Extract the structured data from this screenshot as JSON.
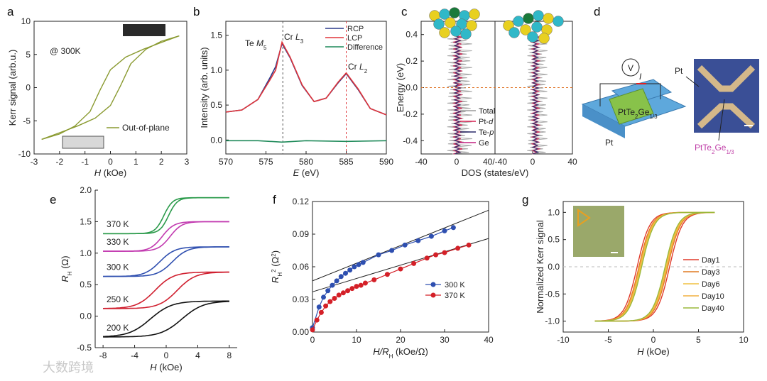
{
  "chart_data": [
    {
      "id": "a",
      "type": "line",
      "panel_label": "a",
      "xlabel": "H (kOe)",
      "ylabel": "Kerr signal (arb.u.)",
      "xlim": [
        -3,
        3
      ],
      "ylim": [
        -10,
        10
      ],
      "xticks": [
        "-3",
        "-2",
        "-1",
        "0",
        "1",
        "2",
        "3"
      ],
      "yticks": [
        "10",
        "5",
        "0",
        "-5",
        "-10"
      ],
      "temperature_note": "@ 300K",
      "legend": [
        "Out-of-plane"
      ],
      "series": [
        {
          "name": "Out-of-plane up-sweep",
          "x": [
            -2.7,
            -2.0,
            -1.3,
            -0.6,
            0.0,
            0.4,
            0.8,
            1.4,
            2.0,
            2.7
          ],
          "y": [
            -7.8,
            -6.8,
            -5.8,
            -4.6,
            -2.7,
            0.3,
            3.6,
            5.8,
            7.0,
            7.8
          ]
        },
        {
          "name": "Out-of-plane down-sweep",
          "x": [
            2.7,
            2.0,
            1.3,
            0.6,
            0.0,
            -0.4,
            -0.8,
            -1.4,
            -2.0,
            -2.7
          ],
          "y": [
            7.8,
            6.8,
            5.8,
            4.6,
            2.7,
            -0.3,
            -3.6,
            -5.8,
            -7.0,
            -7.8
          ]
        }
      ]
    },
    {
      "id": "b",
      "type": "line",
      "panel_label": "b",
      "xlabel": "E (eV)",
      "ylabel": "Intensity (arb. units)",
      "xlim": [
        570,
        590
      ],
      "ylim": [
        -0.2,
        1.7
      ],
      "xticks": [
        "570",
        "575",
        "580",
        "585",
        "590"
      ],
      "yticks": [
        "1.5",
        "1.0",
        "0.5",
        "0.0"
      ],
      "annotations": [
        "Te M5",
        "Cr L3",
        "Cr L2"
      ],
      "legend": [
        "RCP",
        "LCP",
        "Difference"
      ],
      "colors": {
        "RCP": "#2b3a8c",
        "LCP": "#e0353a",
        "Difference": "#1f8a5a"
      },
      "series": [
        {
          "name": "RCP",
          "x": [
            570,
            572,
            574,
            575.5,
            576.2,
            577,
            578,
            579.5,
            581,
            582.5,
            584,
            585,
            586.5,
            588,
            590
          ],
          "y": [
            0.4,
            0.43,
            0.58,
            0.89,
            1.05,
            1.38,
            1.18,
            0.78,
            0.55,
            0.6,
            0.82,
            0.95,
            0.72,
            0.45,
            0.36
          ]
        },
        {
          "name": "LCP",
          "x": [
            570,
            572,
            574,
            575.5,
            576.2,
            577,
            578,
            579.5,
            581,
            582.5,
            584,
            585,
            586.5,
            588,
            590
          ],
          "y": [
            0.4,
            0.43,
            0.58,
            0.86,
            1.0,
            1.4,
            1.19,
            0.79,
            0.55,
            0.6,
            0.83,
            0.96,
            0.73,
            0.45,
            0.36
          ]
        },
        {
          "name": "Difference",
          "x": [
            570,
            574,
            577,
            580,
            585,
            590
          ],
          "y": [
            -0.01,
            -0.01,
            -0.03,
            -0.01,
            -0.02,
            -0.01
          ]
        }
      ]
    },
    {
      "id": "c",
      "type": "line",
      "panel_label": "c",
      "xlabel": "DOS (states/eV)",
      "ylabel": "Energy (eV)",
      "xticks": [
        "-40",
        "0",
        "40/-40",
        "0",
        "40"
      ],
      "yticks": [
        "0.4",
        "0.2",
        "0.0",
        "-0.2",
        "-0.4"
      ],
      "ylim": [
        -0.5,
        0.5
      ],
      "legend": [
        "Total",
        "Pt-d",
        "Te-p",
        "Ge"
      ],
      "colors": {
        "Total": "#9a9a9a",
        "Pt-d": "#d62050",
        "Te-p": "#2a2a6a",
        "Ge": "#c02080"
      }
    },
    {
      "id": "d",
      "type": "diagram",
      "panel_label": "d",
      "labels": [
        "PtTe2Ge1/3",
        "Pt",
        "V",
        "I",
        "Pt",
        "PtTe2Ge1/3"
      ]
    },
    {
      "id": "e",
      "type": "line",
      "panel_label": "e",
      "xlabel": "H (kOe)",
      "ylabel": "RH (Ω)",
      "xlim": [
        -9,
        9
      ],
      "ylim": [
        -0.5,
        2.0
      ],
      "xticks": [
        "-8",
        "-4",
        "0",
        "4",
        "8"
      ],
      "yticks": [
        "2.0",
        "1.5",
        "1.0",
        "0.5",
        "0.0",
        "-0.5"
      ],
      "series": [
        {
          "name": "370 K",
          "color": "#2a9a4a",
          "low": 1.31,
          "high": 1.88,
          "coercive": 0.3
        },
        {
          "name": "330 K",
          "color": "#c23ab0",
          "low": 1.03,
          "high": 1.5,
          "coercive": 0.5
        },
        {
          "name": "300 K",
          "color": "#3050b0",
          "low": 0.63,
          "high": 1.1,
          "coercive": 0.8
        },
        {
          "name": "250 K",
          "color": "#d02030",
          "low": 0.12,
          "high": 0.7,
          "coercive": 1.4
        },
        {
          "name": "200 K",
          "color": "#111111",
          "low": -0.33,
          "high": 0.24,
          "coercive": 2.0
        }
      ]
    },
    {
      "id": "f",
      "type": "scatter",
      "panel_label": "f",
      "xlabel": "H/RH (kOe/Ω)",
      "ylabel": "RH2 (Ω2)",
      "xlim": [
        0,
        40
      ],
      "ylim": [
        0,
        0.12
      ],
      "xticks": [
        "0",
        "10",
        "20",
        "30",
        "40"
      ],
      "yticks": [
        "0.12",
        "0.09",
        "0.06",
        "0.03",
        "0.00"
      ],
      "legend": [
        "300 K",
        "370 K"
      ],
      "series": [
        {
          "name": "300 K",
          "color": "#2e4fb0",
          "x": [
            0,
            1.5,
            2.5,
            3.5,
            4.5,
            5.5,
            6.5,
            7.5,
            8.5,
            9.5,
            10.5,
            11.5,
            15,
            18,
            21,
            24,
            27,
            30,
            32
          ],
          "y": [
            0.004,
            0.023,
            0.032,
            0.038,
            0.043,
            0.047,
            0.051,
            0.054,
            0.057,
            0.06,
            0.062,
            0.064,
            0.071,
            0.075,
            0.08,
            0.084,
            0.088,
            0.093,
            0.096
          ]
        },
        {
          "name": "370 K",
          "color": "#d42028",
          "x": [
            0,
            1,
            2,
            3,
            4,
            5,
            6,
            7,
            8,
            9,
            10,
            11,
            12,
            14,
            17,
            20,
            23,
            26,
            28,
            30,
            33,
            35.5
          ],
          "y": [
            0.002,
            0.011,
            0.018,
            0.024,
            0.028,
            0.031,
            0.034,
            0.036,
            0.038,
            0.04,
            0.042,
            0.043,
            0.045,
            0.048,
            0.053,
            0.058,
            0.063,
            0.068,
            0.071,
            0.073,
            0.077,
            0.08
          ]
        }
      ],
      "fits": [
        {
          "x": [
            0,
            40
          ],
          "y": [
            0.047,
            0.112
          ]
        },
        {
          "x": [
            0,
            40
          ],
          "y": [
            0.037,
            0.086
          ]
        }
      ]
    },
    {
      "id": "g",
      "type": "line",
      "panel_label": "g",
      "xlabel": "H (kOe)",
      "ylabel": "Normalized Kerr signal",
      "xlim": [
        -10,
        10
      ],
      "ylim": [
        -1.2,
        1.2
      ],
      "xticks": [
        "-10",
        "-5",
        "0",
        "5",
        "10"
      ],
      "yticks": [
        "1.0",
        "0.5",
        "0.0",
        "-0.5",
        "-1.0"
      ],
      "series": [
        {
          "name": "Day1",
          "color": "#e03a2a",
          "coercive": 1.8
        },
        {
          "name": "Day3",
          "color": "#e07a20",
          "coercive": 1.6
        },
        {
          "name": "Day6",
          "color": "#f0c040",
          "coercive": 1.4
        },
        {
          "name": "Day10",
          "color": "#f2b040",
          "coercive": 1.5
        },
        {
          "name": "Day40",
          "color": "#9ab83a",
          "coercive": 1.3
        }
      ]
    }
  ],
  "watermark": "大数跨境"
}
